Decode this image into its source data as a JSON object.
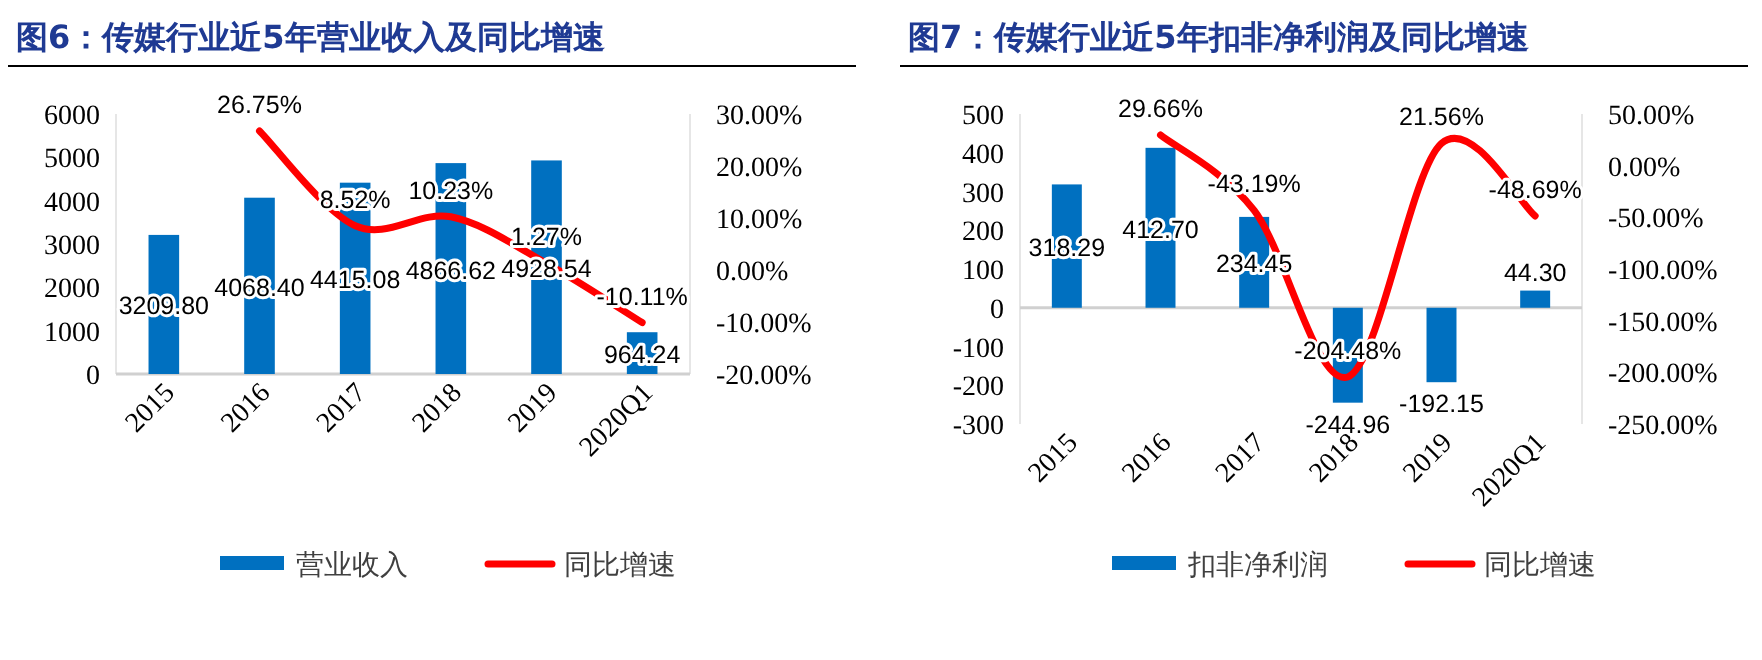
{
  "chart_data": [
    {
      "type": "bar",
      "title": "图6：传媒行业近5年营业收入及同比增速",
      "categories": [
        "2015",
        "2016",
        "2017",
        "2018",
        "2019",
        "2020Q1"
      ],
      "series": [
        {
          "name": "营业收入",
          "color": "#0070c0",
          "values": [
            3209.8,
            4068.4,
            4415.08,
            4866.62,
            4928.54,
            964.24
          ],
          "value_labels": [
            "3209.80",
            "4068.40",
            "4415.08",
            "4866.62",
            "4928.54",
            "964.24"
          ]
        },
        {
          "name": "同比增速",
          "type": "line",
          "axis": "y2",
          "color": "#ff0000",
          "values": [
            null,
            26.75,
            8.52,
            10.23,
            1.27,
            -10.11
          ],
          "value_labels": [
            null,
            "26.75%",
            "8.52%",
            "10.23%",
            "1.27%",
            "-10.11%"
          ]
        }
      ],
      "ylim": [
        0,
        6000
      ],
      "yticks": [
        0,
        1000,
        2000,
        3000,
        4000,
        5000,
        6000
      ],
      "y2lim": [
        -20,
        30
      ],
      "y2ticks": [
        {
          "value": -20,
          "label": "-20.00%"
        },
        {
          "value": -10,
          "label": "-10.00%"
        },
        {
          "value": 0,
          "label": "0.00%"
        },
        {
          "value": 10,
          "label": "10.00%"
        },
        {
          "value": 20,
          "label": "20.00%"
        },
        {
          "value": 30,
          "label": "30.00%"
        }
      ],
      "legend": "bottom",
      "marker": "none",
      "line_style": "solid"
    },
    {
      "type": "bar",
      "title": "图7：传媒行业近5年扣非净利润及同比增速",
      "categories": [
        "2015",
        "2016",
        "2017",
        "2018",
        "2019",
        "2020Q1"
      ],
      "series": [
        {
          "name": "扣非净利润",
          "color": "#0070c0",
          "values": [
            318.29,
            412.7,
            234.45,
            -244.96,
            -192.15,
            44.3
          ],
          "value_labels": [
            "318.29",
            "412.70",
            "234.45",
            "-244.96",
            "-192.15",
            "44.30"
          ]
        },
        {
          "name": "同比增速",
          "type": "line",
          "axis": "y2",
          "color": "#ff0000",
          "values": [
            null,
            29.66,
            -43.19,
            -204.48,
            21.56,
            -48.69
          ],
          "value_labels": [
            null,
            "29.66%",
            "-43.19%",
            "-204.48%",
            "21.56%",
            "-48.69%"
          ]
        }
      ],
      "ylim": [
        -300,
        500
      ],
      "yticks": [
        -300,
        -200,
        -100,
        0,
        100,
        200,
        300,
        400,
        500
      ],
      "y2lim": [
        -250,
        50
      ],
      "y2ticks": [
        {
          "value": -250,
          "label": "-250.00%"
        },
        {
          "value": -200,
          "label": "-200.00%"
        },
        {
          "value": -150,
          "label": "-150.00%"
        },
        {
          "value": -100,
          "label": "-100.00%"
        },
        {
          "value": -50,
          "label": "-50.00%"
        },
        {
          "value": 0,
          "label": "0.00%"
        },
        {
          "value": 50,
          "label": "50.00%"
        }
      ],
      "legend": "bottom",
      "marker": "none",
      "line_style": "solid"
    }
  ]
}
